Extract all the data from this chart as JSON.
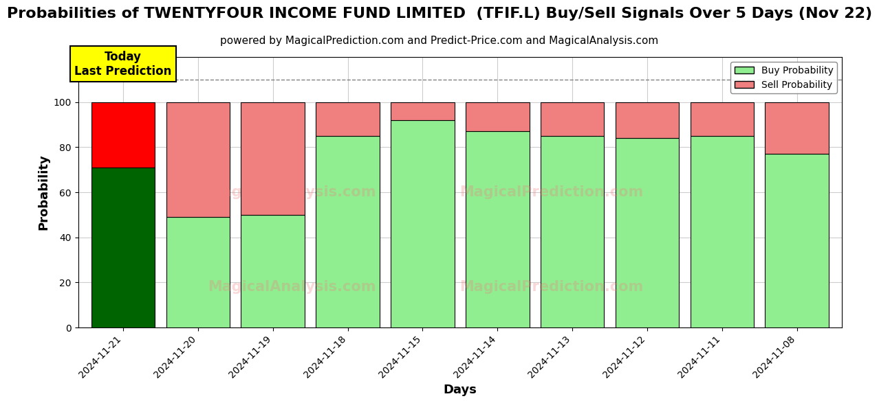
{
  "title": "Probabilities of TWENTYFOUR INCOME FUND LIMITED  (TFIF.L) Buy/Sell Signals Over 5 Days (Nov 22)",
  "subtitle": "powered by MagicalPrediction.com and Predict-Price.com and MagicalAnalysis.com",
  "xlabel": "Days",
  "ylabel": "Probability",
  "dates": [
    "2024-11-21",
    "2024-11-20",
    "2024-11-19",
    "2024-11-18",
    "2024-11-15",
    "2024-11-14",
    "2024-11-13",
    "2024-11-12",
    "2024-11-11",
    "2024-11-08"
  ],
  "buy_values": [
    71,
    49,
    50,
    85,
    92,
    87,
    85,
    84,
    85,
    77
  ],
  "sell_values": [
    29,
    51,
    50,
    15,
    8,
    13,
    15,
    16,
    15,
    23
  ],
  "today_bar_buy_color": "#006400",
  "today_bar_sell_color": "#FF0000",
  "other_bar_buy_color": "#90EE90",
  "other_bar_sell_color": "#F08080",
  "today_label": "Today\nLast Prediction",
  "today_label_bg": "#FFFF00",
  "legend_buy_label": "Buy Probability",
  "legend_sell_label": "Sell Probability",
  "ylim": [
    0,
    120
  ],
  "dashed_line_y": 110,
  "bar_edge_color": "#000000",
  "bar_linewidth": 0.8,
  "background_color": "#FFFFFF",
  "grid_color": "#CCCCCC",
  "title_fontsize": 16,
  "subtitle_fontsize": 11,
  "axis_label_fontsize": 13,
  "tick_fontsize": 10,
  "watermark_color": "#F08080",
  "watermark_alpha": 0.3
}
